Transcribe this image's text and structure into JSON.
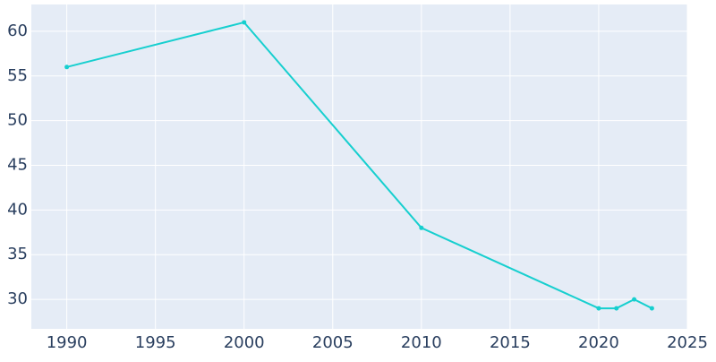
{
  "chart_data": {
    "type": "line",
    "x": [
      1990,
      2000,
      2010,
      2020,
      2021,
      2022,
      2023
    ],
    "series": [
      {
        "color": "#17cfcf",
        "values": [
          56,
          61,
          38,
          29,
          29,
          30,
          29
        ]
      }
    ],
    "xlim": [
      1988,
      2025
    ],
    "xticks": [
      1990,
      1995,
      2000,
      2005,
      2010,
      2015,
      2020,
      2025
    ],
    "ylim": [
      26.7,
      63
    ],
    "yticks": [
      30,
      35,
      40,
      45,
      50,
      55,
      60
    ],
    "grid": true
  }
}
